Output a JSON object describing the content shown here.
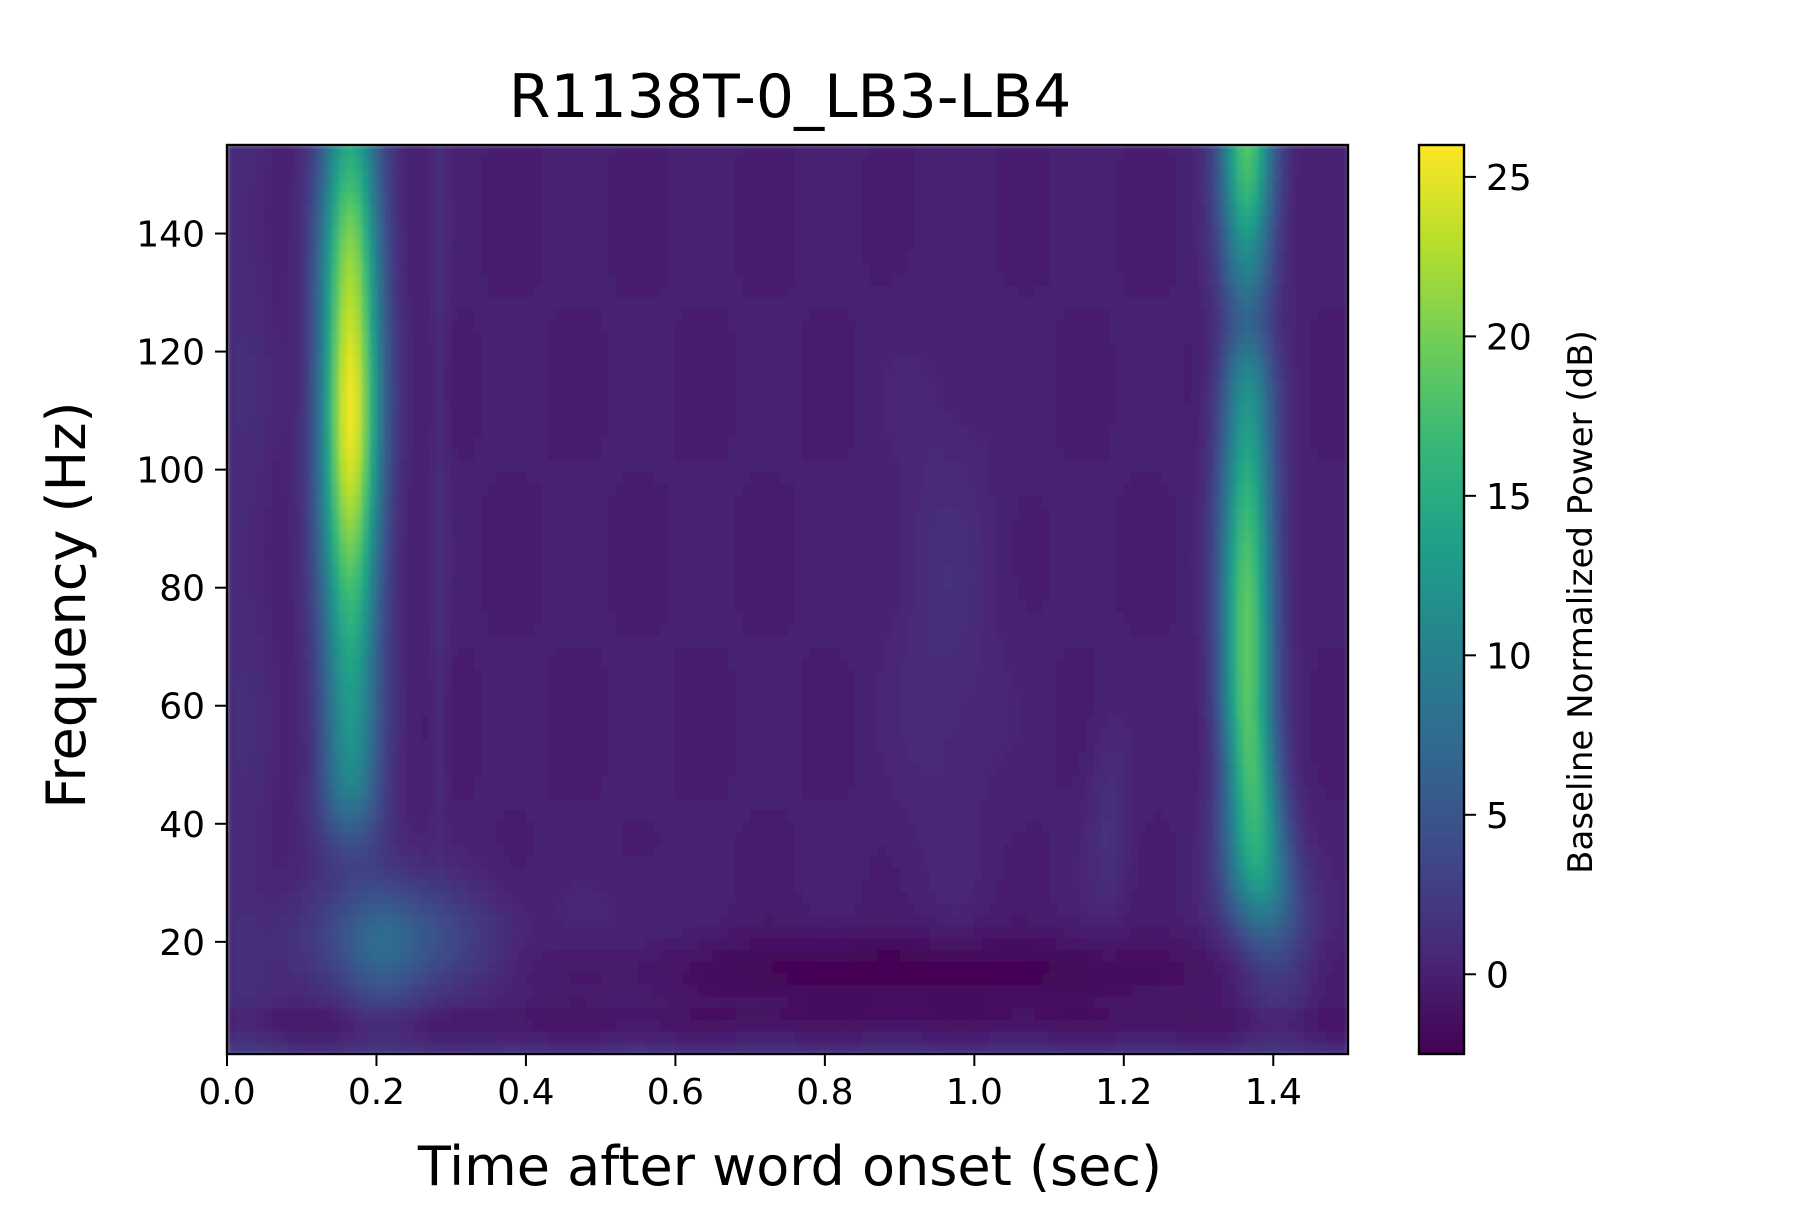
{
  "chart_data": {
    "type": "heatmap",
    "title": "R1138T-0_LB3-LB4",
    "xlabel": "Time after word onset (sec)",
    "ylabel": "Frequency (Hz)",
    "colorbar_label": "Baseline Normalized Power (dB)",
    "colormap": "viridis",
    "xlim": [
      0.0,
      1.5
    ],
    "ylim": [
      1,
      155
    ],
    "clim": [
      -2.5,
      26
    ],
    "xticks": [
      0.0,
      0.2,
      0.4,
      0.6,
      0.8,
      1.0,
      1.2,
      1.4
    ],
    "xtick_labels": [
      "0.0",
      "0.2",
      "0.4",
      "0.6",
      "0.8",
      "1.0",
      "1.2",
      "1.4"
    ],
    "yticks": [
      20,
      40,
      60,
      80,
      100,
      120,
      140
    ],
    "ytick_labels": [
      "20",
      "40",
      "60",
      "80",
      "100",
      "120",
      "140"
    ],
    "cticks": [
      0,
      5,
      10,
      15,
      20,
      25
    ],
    "ctick_labels": [
      "0",
      "5",
      "10",
      "15",
      "20",
      "25"
    ],
    "background_db": 0,
    "features": [
      {
        "label": "early high-frequency burst",
        "time_center": 0.165,
        "time_width": 0.028,
        "freq_range": [
          35,
          155
        ],
        "peak_db": 25.5,
        "peak_freq": 110
      },
      {
        "label": "late high-frequency burst",
        "time_center": 1.365,
        "time_width": 0.025,
        "freq_range": [
          20,
          155
        ],
        "peak_db": 25.8,
        "peak_freq": 150
      },
      {
        "label": "early low-frequency spread",
        "time_center": 0.23,
        "time_width": 0.09,
        "freq_range": [
          5,
          35
        ],
        "peak_db": 5
      },
      {
        "label": "low-frequency suppression",
        "time_center": 0.92,
        "time_width": 0.3,
        "freq_range": [
          8,
          22
        ],
        "peak_db": -2.5
      }
    ]
  }
}
